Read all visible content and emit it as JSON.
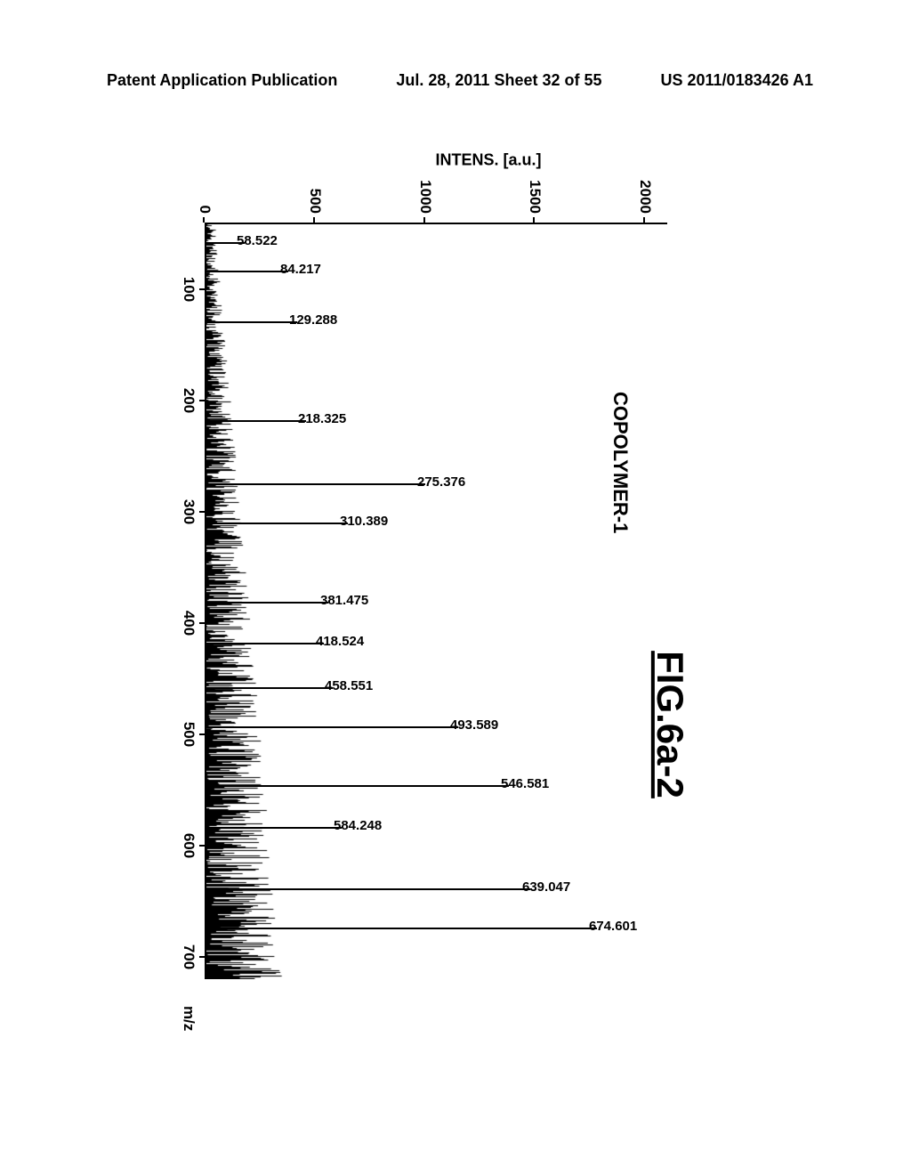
{
  "header": {
    "left": "Patent Application Publication",
    "center": "Jul. 28, 2011  Sheet 32 of 55",
    "right": "US 2011/0183426 A1"
  },
  "figure_label": "FIG.6a-2",
  "spectrum": {
    "type": "mass-spectrum",
    "title": "COPOLYMER-1",
    "y_axis_label": "INTENS. [a.u.]",
    "x_axis_units": "m/z",
    "background_color": "#ffffff",
    "axis_color": "#000000",
    "text_color": "#000000",
    "peak_color": "#000000",
    "title_fontsize": 22,
    "label_fontsize": 18,
    "tick_fontsize": 17,
    "peak_label_fontsize": 15,
    "xlim": [
      40,
      720
    ],
    "ylim": [
      0,
      2100
    ],
    "yticks": [
      0,
      500,
      1000,
      1500,
      2000
    ],
    "xticks": [
      100,
      200,
      300,
      400,
      500,
      600,
      700
    ],
    "peaks": [
      {
        "mz": 58.522,
        "intensity": 180
      },
      {
        "mz": 84.217,
        "intensity": 380
      },
      {
        "mz": 129.288,
        "intensity": 420
      },
      {
        "mz": 218.325,
        "intensity": 460
      },
      {
        "mz": 275.376,
        "intensity": 1000
      },
      {
        "mz": 310.389,
        "intensity": 650
      },
      {
        "mz": 381.475,
        "intensity": 560
      },
      {
        "mz": 418.524,
        "intensity": 540
      },
      {
        "mz": 458.551,
        "intensity": 580
      },
      {
        "mz": 493.589,
        "intensity": 1150
      },
      {
        "mz": 546.581,
        "intensity": 1380
      },
      {
        "mz": 584.248,
        "intensity": 620
      },
      {
        "mz": 639.047,
        "intensity": 1480
      },
      {
        "mz": 674.601,
        "intensity": 1780
      }
    ],
    "noise_floor_max": 320
  }
}
